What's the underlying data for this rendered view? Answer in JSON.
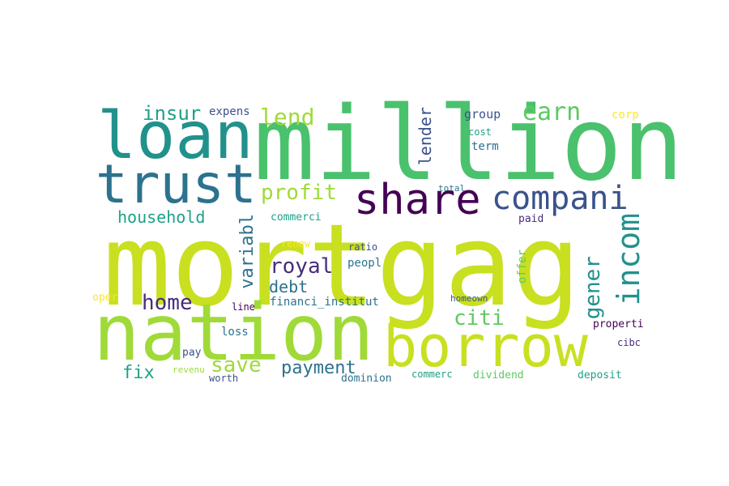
{
  "palette": {
    "lime": "#c8e020",
    "yellowgreen": "#a0da39",
    "green": "#4ac16d",
    "mint": "#5ec962",
    "teal": "#21918c",
    "seablue": "#2c728e",
    "blue": "#3b528b",
    "indigo": "#472d7b",
    "purple": "#440154",
    "yellow": "#fde725",
    "aqua": "#1fa187"
  },
  "words": {
    "mortgag": "mortgag",
    "million": "million",
    "nation": "nation",
    "borrow": "borrow",
    "loan": "loan",
    "trust": "trust",
    "share": "share",
    "compani": "compani",
    "incom": "incom",
    "lend": "lend",
    "earn": "earn",
    "insur": "insur",
    "expens": "expens",
    "profit": "profit",
    "household": "household",
    "lender": "lender",
    "group": "group",
    "cost": "cost",
    "term": "term",
    "corp": "corp",
    "total": "total",
    "paid": "paid",
    "commerci": "commerci",
    "variabl": "variabl",
    "royal": "royal",
    "debt": "debt",
    "renew": "renew",
    "ratio": "ratio",
    "peopl": "peopl",
    "offer": "offer",
    "gener": "gener",
    "home": "home",
    "oper": "oper",
    "financi_institut": "financi_institut",
    "line": "line",
    "homeown": "homeown",
    "citi": "citi",
    "properti": "properti",
    "loss": "loss",
    "save": "save",
    "payment": "payment",
    "pay": "pay",
    "cibc": "cibc",
    "fix": "fix",
    "revenu": "revenu",
    "worth": "worth",
    "dominion": "dominion",
    "commerc": "commerc",
    "dividend": "dividend",
    "deposit": "deposit"
  }
}
